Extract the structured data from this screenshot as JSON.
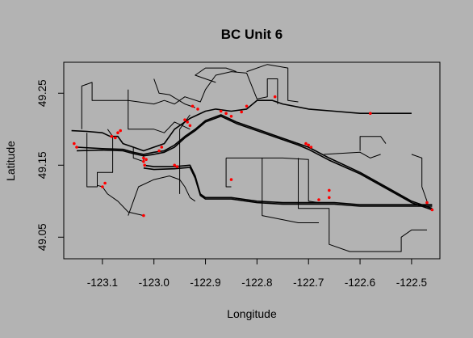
{
  "chart_data": {
    "type": "line",
    "title": "BC Unit 6",
    "xlabel": "Longitude",
    "ylabel": "Latitude",
    "xlim": [
      -123.175,
      -122.445
    ],
    "ylim": [
      49.02,
      49.293
    ],
    "x_ticks": [
      -123.1,
      -123.0,
      -122.9,
      -122.8,
      -122.7,
      -122.6,
      -122.5
    ],
    "y_ticks": [
      49.05,
      49.15,
      49.25
    ],
    "x_tick_labels": [
      "-123.1",
      "-123.0",
      "-122.9",
      "-122.8",
      "-122.7",
      "-122.6",
      "-122.5"
    ],
    "y_tick_labels": [
      "49.05",
      "49.15",
      "49.25"
    ],
    "grid": false,
    "colors": {
      "background": "#b3b3b3",
      "track": "#000000",
      "points": "#ff0000"
    },
    "series": [
      {
        "points": [
          [
            -123.16,
            49.198
          ],
          [
            -123.13,
            49.197
          ],
          [
            -123.1,
            49.195
          ],
          [
            -123.085,
            49.19
          ],
          [
            -123.07,
            49.19
          ],
          [
            -123.06,
            49.18
          ],
          [
            -123.04,
            49.175
          ],
          [
            -123.02,
            49.17
          ],
          [
            -123.0,
            49.175
          ],
          [
            -122.98,
            49.18
          ],
          [
            -122.96,
            49.2
          ],
          [
            -122.93,
            49.215
          ],
          [
            -122.9,
            49.225
          ],
          [
            -122.88,
            49.228
          ],
          [
            -122.85,
            49.225
          ],
          [
            -122.82,
            49.228
          ],
          [
            -122.8,
            49.24
          ],
          [
            -122.77,
            49.24
          ],
          [
            -122.75,
            49.235
          ],
          [
            -122.7,
            49.228
          ],
          [
            -122.65,
            49.225
          ],
          [
            -122.6,
            49.222
          ],
          [
            -122.5,
            49.222
          ]
        ]
      },
      {
        "points": [
          [
            -123.15,
            49.175
          ],
          [
            -123.1,
            49.173
          ],
          [
            -123.06,
            49.172
          ],
          [
            -123.04,
            49.168
          ],
          [
            -123.02,
            49.165
          ],
          [
            -123.0,
            49.168
          ],
          [
            -122.98,
            49.17
          ],
          [
            -122.96,
            49.178
          ],
          [
            -122.94,
            49.19
          ],
          [
            -122.92,
            49.2
          ],
          [
            -122.9,
            49.212
          ],
          [
            -122.87,
            49.22
          ],
          [
            -122.84,
            49.21
          ],
          [
            -122.8,
            49.2
          ],
          [
            -122.76,
            49.19
          ],
          [
            -122.72,
            49.18
          ],
          [
            -122.7,
            49.175
          ],
          [
            -122.66,
            49.16
          ],
          [
            -122.6,
            49.14
          ],
          [
            -122.55,
            49.12
          ],
          [
            -122.5,
            49.1
          ],
          [
            -122.46,
            49.09
          ]
        ]
      },
      {
        "points": [
          [
            -123.15,
            49.17
          ],
          [
            -123.1,
            49.171
          ],
          [
            -123.06,
            49.17
          ],
          [
            -123.04,
            49.166
          ],
          [
            -123.02,
            49.163
          ],
          [
            -123.0,
            49.165
          ],
          [
            -122.98,
            49.168
          ],
          [
            -122.96,
            49.175
          ],
          [
            -122.94,
            49.188
          ],
          [
            -122.92,
            49.198
          ],
          [
            -122.9,
            49.21
          ],
          [
            -122.87,
            49.218
          ],
          [
            -122.84,
            49.208
          ],
          [
            -122.8,
            49.198
          ],
          [
            -122.76,
            49.188
          ],
          [
            -122.72,
            49.178
          ],
          [
            -122.7,
            49.172
          ],
          [
            -122.66,
            49.157
          ],
          [
            -122.6,
            49.138
          ],
          [
            -122.55,
            49.118
          ],
          [
            -122.5,
            49.098
          ],
          [
            -122.46,
            49.088
          ]
        ]
      },
      {
        "points": [
          [
            -123.02,
            49.15
          ],
          [
            -123.0,
            49.148
          ],
          [
            -122.96,
            49.148
          ],
          [
            -122.93,
            49.15
          ],
          [
            -122.92,
            49.135
          ],
          [
            -122.91,
            49.11
          ],
          [
            -122.9,
            49.105
          ],
          [
            -122.85,
            49.105
          ],
          [
            -122.8,
            49.1
          ],
          [
            -122.75,
            49.098
          ],
          [
            -122.7,
            49.098
          ],
          [
            -122.65,
            49.098
          ],
          [
            -122.6,
            49.095
          ],
          [
            -122.55,
            49.095
          ],
          [
            -122.5,
            49.095
          ],
          [
            -122.46,
            49.095
          ]
        ]
      },
      {
        "points": [
          [
            -123.02,
            49.146
          ],
          [
            -123.0,
            49.144
          ],
          [
            -122.96,
            49.145
          ],
          [
            -122.93,
            49.147
          ],
          [
            -122.92,
            49.132
          ],
          [
            -122.91,
            49.108
          ],
          [
            -122.9,
            49.103
          ],
          [
            -122.85,
            49.103
          ],
          [
            -122.8,
            49.098
          ],
          [
            -122.75,
            49.096
          ],
          [
            -122.7,
            49.096
          ],
          [
            -122.65,
            49.096
          ],
          [
            -122.6,
            49.093
          ],
          [
            -122.55,
            49.093
          ],
          [
            -122.5,
            49.093
          ],
          [
            -122.46,
            49.093
          ]
        ]
      },
      {
        "points": [
          [
            -123.05,
            49.08
          ],
          [
            -123.04,
            49.1
          ],
          [
            -123.03,
            49.12
          ],
          [
            -123.0,
            49.13
          ],
          [
            -122.97,
            49.135
          ],
          [
            -122.95,
            49.13
          ],
          [
            -122.94,
            49.12
          ],
          [
            -122.93,
            49.105
          ],
          [
            -122.92,
            49.1
          ]
        ]
      },
      {
        "points": [
          [
            -123.14,
            49.2
          ],
          [
            -123.14,
            49.26
          ],
          [
            -123.12,
            49.265
          ],
          [
            -123.12,
            49.24
          ],
          [
            -123.05,
            49.24
          ],
          [
            -123.0,
            49.235
          ],
          [
            -122.98,
            49.24
          ],
          [
            -122.96,
            49.235
          ],
          [
            -122.94,
            49.245
          ],
          [
            -122.91,
            49.238
          ],
          [
            -122.9,
            49.255
          ],
          [
            -122.88,
            49.275
          ],
          [
            -122.85,
            49.28
          ],
          [
            -122.82,
            49.278
          ],
          [
            -122.81,
            49.26
          ],
          [
            -122.8,
            49.242
          ],
          [
            -122.78,
            49.245
          ],
          [
            -122.78,
            49.27
          ],
          [
            -122.76,
            49.27
          ],
          [
            -122.76,
            49.235
          ]
        ]
      },
      {
        "points": [
          [
            -123.05,
            49.255
          ],
          [
            -123.05,
            49.2
          ],
          [
            -123.0,
            49.2
          ],
          [
            -122.98,
            49.195
          ],
          [
            -122.96,
            49.21
          ],
          [
            -122.93,
            49.2
          ]
        ]
      },
      {
        "points": [
          [
            -123.0,
            49.27
          ],
          [
            -122.99,
            49.25
          ],
          [
            -122.97,
            49.248
          ],
          [
            -122.94,
            49.235
          ],
          [
            -122.92,
            49.23
          ]
        ]
      },
      {
        "points": [
          [
            -123.13,
            49.195
          ],
          [
            -123.13,
            49.12
          ],
          [
            -123.11,
            49.12
          ],
          [
            -123.11,
            49.14
          ],
          [
            -123.08,
            49.14
          ],
          [
            -123.08,
            49.19
          ],
          [
            -123.09,
            49.2
          ]
        ]
      },
      {
        "points": [
          [
            -123.02,
            49.08
          ],
          [
            -123.05,
            49.085
          ],
          [
            -123.07,
            49.1
          ],
          [
            -123.09,
            49.11
          ],
          [
            -123.1,
            49.12
          ],
          [
            -123.11,
            49.122
          ]
        ]
      },
      {
        "points": [
          [
            -123.04,
            49.175
          ],
          [
            -123.04,
            49.16
          ],
          [
            -123.02,
            49.155
          ],
          [
            -123.02,
            49.165
          ]
        ]
      },
      {
        "points": [
          [
            -122.86,
            49.16
          ],
          [
            -122.75,
            49.16
          ],
          [
            -122.75,
            49.16
          ],
          [
            -122.7,
            49.158
          ],
          [
            -122.7,
            49.1
          ],
          [
            -122.68,
            49.098
          ]
        ]
      },
      {
        "points": [
          [
            -122.86,
            49.16
          ],
          [
            -122.86,
            49.12
          ],
          [
            -122.85,
            49.12
          ]
        ]
      },
      {
        "points": [
          [
            -122.72,
            49.16
          ],
          [
            -122.72,
            49.09
          ],
          [
            -122.66,
            49.09
          ],
          [
            -122.66,
            49.04
          ],
          [
            -122.62,
            49.03
          ],
          [
            -122.52,
            49.03
          ],
          [
            -122.52,
            49.05
          ],
          [
            -122.5,
            49.06
          ],
          [
            -122.47,
            49.06
          ]
        ]
      },
      {
        "points": [
          [
            -122.79,
            49.16
          ],
          [
            -122.79,
            49.08
          ],
          [
            -122.72,
            49.07
          ],
          [
            -122.68,
            49.07
          ]
        ]
      },
      {
        "points": [
          [
            -122.67,
            49.165
          ],
          [
            -122.6,
            49.168
          ],
          [
            -122.58,
            49.16
          ],
          [
            -122.56,
            49.165
          ]
        ]
      },
      {
        "points": [
          [
            -122.6,
            49.17
          ],
          [
            -122.6,
            49.19
          ],
          [
            -122.56,
            49.19
          ],
          [
            -122.55,
            49.18
          ]
        ]
      },
      {
        "points": [
          [
            -122.5,
            49.165
          ],
          [
            -122.48,
            49.16
          ],
          [
            -122.48,
            49.12
          ],
          [
            -122.47,
            49.1
          ]
        ]
      },
      {
        "points": [
          [
            -122.95,
            49.11
          ],
          [
            -122.95,
            49.2
          ],
          [
            -122.93,
            49.22
          ]
        ]
      },
      {
        "points": [
          [
            -122.84,
            49.28
          ],
          [
            -122.86,
            49.285
          ],
          [
            -122.9,
            49.285
          ],
          [
            -122.92,
            49.275
          ],
          [
            -122.9,
            49.27
          ],
          [
            -122.88,
            49.265
          ]
        ]
      },
      {
        "points": [
          [
            -122.82,
            49.28
          ],
          [
            -122.78,
            49.29
          ],
          [
            -122.74,
            49.285
          ],
          [
            -122.74,
            49.24
          ],
          [
            -122.72,
            49.238
          ]
        ]
      }
    ],
    "points": [
      [
        -123.155,
        49.18
      ],
      [
        -123.15,
        49.175
      ],
      [
        -123.082,
        49.19
      ],
      [
        -123.075,
        49.188
      ],
      [
        -123.07,
        49.195
      ],
      [
        -123.065,
        49.198
      ],
      [
        -123.02,
        49.16
      ],
      [
        -123.02,
        49.155
      ],
      [
        -123.018,
        49.15
      ],
      [
        -123.015,
        49.158
      ],
      [
        -122.99,
        49.17
      ],
      [
        -122.985,
        49.175
      ],
      [
        -122.94,
        49.213
      ],
      [
        -122.935,
        49.21
      ],
      [
        -122.93,
        49.205
      ],
      [
        -122.96,
        49.15
      ],
      [
        -122.955,
        49.148
      ],
      [
        -122.925,
        49.232
      ],
      [
        -122.915,
        49.228
      ],
      [
        -122.87,
        49.225
      ],
      [
        -122.86,
        49.222
      ],
      [
        -122.85,
        49.218
      ],
      [
        -122.83,
        49.224
      ],
      [
        -122.82,
        49.232
      ],
      [
        -122.765,
        49.245
      ],
      [
        -122.58,
        49.222
      ],
      [
        -122.7,
        49.178
      ],
      [
        -122.695,
        49.175
      ],
      [
        -122.705,
        49.18
      ],
      [
        -122.85,
        49.13
      ],
      [
        -122.66,
        49.115
      ],
      [
        -122.66,
        49.105
      ],
      [
        -122.68,
        49.102
      ],
      [
        -123.1,
        49.12
      ],
      [
        -123.095,
        49.125
      ],
      [
        -123.02,
        49.08
      ],
      [
        -122.46,
        49.088
      ],
      [
        -122.47,
        49.098
      ]
    ]
  }
}
